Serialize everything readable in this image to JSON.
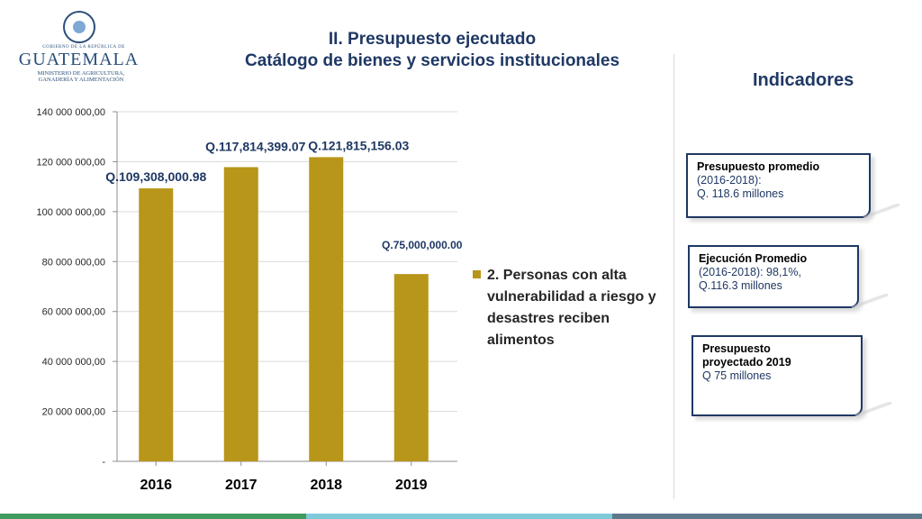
{
  "logo": {
    "line1": "GOBIERNO DE LA REPÚBLICA DE",
    "line2": "GUATEMALA",
    "line3a": "MINISTERIO DE AGRICULTURA,",
    "line3b": "GANADERÍA Y ALIMENTACIÓN"
  },
  "header": {
    "title_line1": "II. Presupuesto ejecutado",
    "title_line2": "Catálogo de bienes y servicios institucionales"
  },
  "side": {
    "heading": "Indicadores",
    "cards": [
      {
        "title": "Presupuesto promedio",
        "line2": "(2016-2018):",
        "line3": "Q. 118.6 millones"
      },
      {
        "title": "Ejecución Promedio",
        "line2": "(2016-2018): 98,1%,",
        "line3": "Q.116.3 millones"
      },
      {
        "title": "Presupuesto",
        "line2": "proyectado 2019",
        "line3": "Q 75 millones"
      }
    ]
  },
  "colors": {
    "bar": "#b8961a",
    "title": "#1f3864",
    "card_border": "#1f3864",
    "bottom_bar": [
      "#3f9b5c",
      "#7fc9d8",
      "#5d7a8c"
    ]
  },
  "chart_data": {
    "type": "bar",
    "categories": [
      "2016",
      "2017",
      "2018",
      "2019"
    ],
    "series": [
      {
        "name": "2. Personas con alta vulnerabilidad a riesgo y desastres reciben alimentos",
        "values": [
          109308000.98,
          117814399.07,
          121815156.03,
          75000000.0
        ]
      }
    ],
    "data_labels": [
      "Q.109,308,000.98",
      "Q.117,814,399.07",
      "Q.121,815,156.03",
      "Q.75,000,000.00"
    ],
    "y_ticks": [
      "-",
      "20 000 000,00",
      "40 000 000,00",
      "60 000 000,00",
      "80 000 000,00",
      "100 000 000,00",
      "120 000 000,00",
      "140 000 000,00"
    ],
    "ylim": [
      0,
      140000000
    ],
    "legend_lines": [
      "2. Personas con alta",
      "vulnerabilidad a riesgo y",
      "desastres reciben",
      "alimentos"
    ],
    "legend_position": "right"
  }
}
